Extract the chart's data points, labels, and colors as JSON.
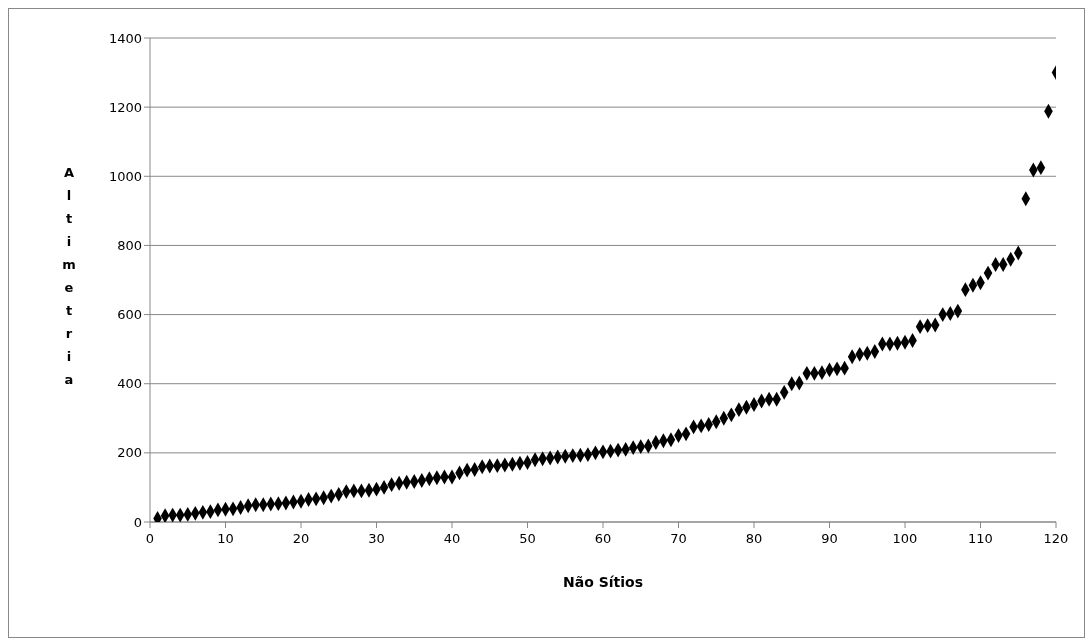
{
  "chart_data": {
    "type": "scatter",
    "xlabel": "Não Sítios",
    "ylabel": "Altimetria",
    "x": [
      1,
      2,
      3,
      4,
      5,
      6,
      7,
      8,
      9,
      10,
      11,
      12,
      13,
      14,
      15,
      16,
      17,
      18,
      19,
      20,
      21,
      22,
      23,
      24,
      25,
      26,
      27,
      28,
      29,
      30,
      31,
      32,
      33,
      34,
      35,
      36,
      37,
      38,
      39,
      40,
      41,
      42,
      43,
      44,
      45,
      46,
      47,
      48,
      49,
      50,
      51,
      52,
      53,
      54,
      55,
      56,
      57,
      58,
      59,
      60,
      61,
      62,
      63,
      64,
      65,
      66,
      67,
      68,
      69,
      70,
      71,
      72,
      73,
      74,
      75,
      76,
      77,
      78,
      79,
      80,
      81,
      82,
      83,
      84,
      85,
      86,
      87,
      88,
      89,
      90,
      91,
      92,
      93,
      94,
      95,
      96,
      97,
      98,
      99,
      100,
      101,
      102,
      103,
      104,
      105,
      106,
      107,
      108,
      109,
      110,
      111,
      112,
      113,
      114,
      115,
      116,
      117,
      118,
      119,
      120
    ],
    "series": [
      {
        "color": "#000000",
        "values": [
          10,
          18,
          20,
          20,
          22,
          25,
          28,
          30,
          35,
          37,
          38,
          42,
          47,
          50,
          50,
          52,
          53,
          55,
          58,
          60,
          65,
          67,
          70,
          75,
          80,
          88,
          90,
          90,
          92,
          95,
          100,
          108,
          112,
          115,
          117,
          120,
          125,
          128,
          130,
          130,
          142,
          150,
          152,
          160,
          162,
          163,
          165,
          167,
          170,
          172,
          180,
          183,
          185,
          188,
          190,
          192,
          193,
          195,
          200,
          203,
          205,
          208,
          210,
          215,
          218,
          220,
          230,
          235,
          238,
          250,
          255,
          275,
          278,
          282,
          290,
          300,
          310,
          325,
          332,
          340,
          350,
          355,
          355,
          375,
          400,
          402,
          430,
          430,
          432,
          440,
          443,
          445,
          478,
          485,
          488,
          493,
          515,
          515,
          517,
          520,
          525,
          565,
          568,
          570,
          600,
          603,
          610,
          672,
          685,
          692,
          720,
          745,
          745,
          760,
          778,
          935,
          1018,
          1025,
          1188,
          1300
        ]
      }
    ],
    "xlim": [
      0,
      120
    ],
    "xticks": [
      0,
      10,
      20,
      30,
      40,
      50,
      60,
      70,
      80,
      90,
      100,
      110,
      120
    ],
    "ylim": [
      0,
      1400
    ],
    "yticks": [
      0,
      200,
      400,
      600,
      800,
      1000,
      1200,
      1400
    ],
    "grid": "y",
    "marker": "diamond",
    "legend": false
  }
}
